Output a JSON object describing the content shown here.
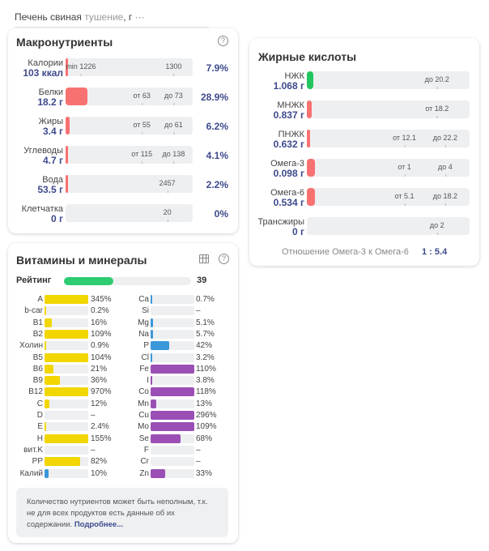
{
  "header": {
    "product": "Печень свиная",
    "variant": "тушение",
    "unit": ", г",
    "more": "···"
  },
  "macros": {
    "title": "Макронутриенты",
    "rows": [
      {
        "name": "Калории",
        "value": "103 ккал",
        "fill": 0.01,
        "marks": [
          "min 1226",
          "1300"
        ],
        "pct": "7.9%"
      },
      {
        "name": "Белки",
        "value": "18.2 г",
        "fill": 0.17,
        "marks": [
          "от 63",
          "до 73"
        ],
        "pct": "28.9%"
      },
      {
        "name": "Жиры",
        "value": "3.4 г",
        "fill": 0.03,
        "marks": [
          "от 55",
          "до 61"
        ],
        "pct": "6.2%"
      },
      {
        "name": "Углеводы",
        "value": "4.7 г",
        "fill": 0.02,
        "marks": [
          "от 115",
          "до 138"
        ],
        "pct": "4.1%"
      },
      {
        "name": "Вода",
        "value": "53.5 г",
        "fill": 0.01,
        "marks": [
          "2457"
        ],
        "pct": "2.2%"
      },
      {
        "name": "Клетчатка",
        "value": "0 г",
        "fill": 0,
        "marks": [
          "20"
        ],
        "pct": "0%"
      }
    ]
  },
  "fatty": {
    "title": "Жирные кислоты",
    "rows": [
      {
        "name": "НЖК",
        "value": "1.068 г",
        "fill": 0.04,
        "color": "#22c55e",
        "marks": [
          "до 20.2"
        ]
      },
      {
        "name": "МНЖК",
        "value": "0.837 г",
        "fill": 0.03,
        "color": "#f87171",
        "marks": [
          "от 18.2"
        ]
      },
      {
        "name": "ПНЖК",
        "value": "0.632 г",
        "fill": 0.02,
        "color": "#f87171",
        "marks": [
          "от 12.1",
          "до 22.2"
        ]
      },
      {
        "name": "Омега-3",
        "value": "0.098 г",
        "fill": 0.05,
        "color": "#f87171",
        "marks": [
          "от 1",
          "до 4"
        ]
      },
      {
        "name": "Омега-6",
        "value": "0.534 г",
        "fill": 0.05,
        "color": "#f87171",
        "marks": [
          "от 5.1",
          "до 18.2"
        ]
      },
      {
        "name": "Трансжиры",
        "value": "0 г",
        "fill": 0,
        "color": "#f87171",
        "marks": [
          "до 2"
        ]
      }
    ],
    "ratio_label": "Отношение Омега-3 к Омега-6",
    "ratio": "1 : 5.4"
  },
  "vitamins": {
    "title": "Витамины и минералы",
    "rating_label": "Рейтинг",
    "rating": 39,
    "left": [
      {
        "n": "A",
        "p": "345%",
        "v": 345,
        "c": "#f2d600"
      },
      {
        "n": "b-car",
        "p": "0.2%",
        "v": 0.2,
        "c": "#f2d600"
      },
      {
        "n": "B1",
        "p": "16%",
        "v": 16,
        "c": "#f2d600"
      },
      {
        "n": "B2",
        "p": "109%",
        "v": 109,
        "c": "#f2d600"
      },
      {
        "n": "Холин",
        "p": "0.9%",
        "v": 0.9,
        "c": "#f2d600"
      },
      {
        "n": "B5",
        "p": "104%",
        "v": 104,
        "c": "#f2d600"
      },
      {
        "n": "B6",
        "p": "21%",
        "v": 21,
        "c": "#f2d600"
      },
      {
        "n": "B9",
        "p": "36%",
        "v": 36,
        "c": "#f2d600"
      },
      {
        "n": "B12",
        "p": "970%",
        "v": 970,
        "c": "#f2d600"
      },
      {
        "n": "C",
        "p": "12%",
        "v": 12,
        "c": "#f2d600"
      },
      {
        "n": "D",
        "p": "–",
        "v": 0,
        "c": "#f2d600"
      },
      {
        "n": "E",
        "p": "2.4%",
        "v": 2.4,
        "c": "#f2d600"
      },
      {
        "n": "H",
        "p": "155%",
        "v": 155,
        "c": "#f2d600"
      },
      {
        "n": "вит.K",
        "p": "–",
        "v": 0,
        "c": "#f2d600"
      },
      {
        "n": "PP",
        "p": "82%",
        "v": 82,
        "c": "#f2d600"
      },
      {
        "n": "Калий",
        "p": "10%",
        "v": 10,
        "c": "#3a97d9"
      }
    ],
    "right": [
      {
        "n": "Ca",
        "p": "0.7%",
        "v": 0.7,
        "c": "#3a97d9"
      },
      {
        "n": "Si",
        "p": "–",
        "v": 0,
        "c": "#3a97d9"
      },
      {
        "n": "Mg",
        "p": "5.1%",
        "v": 5.1,
        "c": "#3a97d9"
      },
      {
        "n": "Na",
        "p": "5.7%",
        "v": 5.7,
        "c": "#3a97d9"
      },
      {
        "n": "P",
        "p": "42%",
        "v": 42,
        "c": "#3a97d9"
      },
      {
        "n": "Cl",
        "p": "3.2%",
        "v": 3.2,
        "c": "#3a97d9"
      },
      {
        "n": "Fe",
        "p": "110%",
        "v": 110,
        "c": "#9b4fb5"
      },
      {
        "n": "I",
        "p": "3.8%",
        "v": 3.8,
        "c": "#9b4fb5"
      },
      {
        "n": "Co",
        "p": "118%",
        "v": 118,
        "c": "#9b4fb5"
      },
      {
        "n": "Mn",
        "p": "13%",
        "v": 13,
        "c": "#9b4fb5"
      },
      {
        "n": "Cu",
        "p": "296%",
        "v": 296,
        "c": "#9b4fb5"
      },
      {
        "n": "Mo",
        "p": "109%",
        "v": 109,
        "c": "#9b4fb5"
      },
      {
        "n": "Se",
        "p": "68%",
        "v": 68,
        "c": "#9b4fb5"
      },
      {
        "n": "F",
        "p": "–",
        "v": 0,
        "c": "#9b4fb5"
      },
      {
        "n": "Cr",
        "p": "–",
        "v": 0,
        "c": "#9b4fb5"
      },
      {
        "n": "Zn",
        "p": "33%",
        "v": 33,
        "c": "#9b4fb5"
      }
    ],
    "note": "Количество нутриентов может быть неполным, т.к. не для всех продуктов есть данные об их содержании.",
    "note_link": "Подробнее..."
  }
}
